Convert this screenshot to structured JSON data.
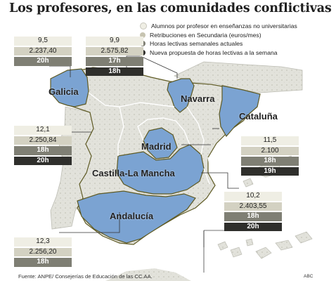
{
  "title": "Los profesores, en las comunidades conflictivas",
  "legend": [
    {
      "label": "Alumnos por profesor en enseñanzas no universitarias",
      "color": "#efeee4"
    },
    {
      "label": "Retribuciones en Secundaria (euros/mes)",
      "color": "#c7c4b1"
    },
    {
      "label": "Horas lectivas semanales actuales",
      "color": "#7f7f74"
    },
    {
      "label": "Nueva propuesta de horas lectivas a la semana",
      "color": "#2f2f2c"
    }
  ],
  "regions": {
    "galicia": {
      "name": "Galicia",
      "alumnos": "9,5",
      "retribucion": "2.237,40",
      "horas": "20h"
    },
    "navarra": {
      "name": "Navarra",
      "alumnos": "9,9",
      "retribucion": "2.575,82",
      "horas": "17h",
      "propuesta": "18h"
    },
    "cataluna": {
      "name": "Cataluña",
      "alumnos": "11,5",
      "retribucion": "2.100",
      "horas": "18h",
      "propuesta": "19h"
    },
    "madrid": {
      "name": "Madrid",
      "alumnos": "12,1",
      "retribucion": "2.250,84",
      "horas": "18h",
      "propuesta": "20h"
    },
    "castilla": {
      "name": "Castilla-La Mancha",
      "alumnos": "10,2",
      "retribucion": "2.403,55",
      "horas": "18h",
      "propuesta": "20h"
    },
    "andalucia": {
      "name": "Andalucía",
      "alumnos": "12,3",
      "retribucion": "2.256,20",
      "horas": "18h"
    }
  },
  "source": "Fuente: ANPE/ Consejerías de Educación de las CC.AA.",
  "credit": "ABC",
  "colors": {
    "highlight": "#7ba3d2",
    "land": "#e3e3dd",
    "outline": "#5e5a24",
    "sea": "#ffffff"
  }
}
